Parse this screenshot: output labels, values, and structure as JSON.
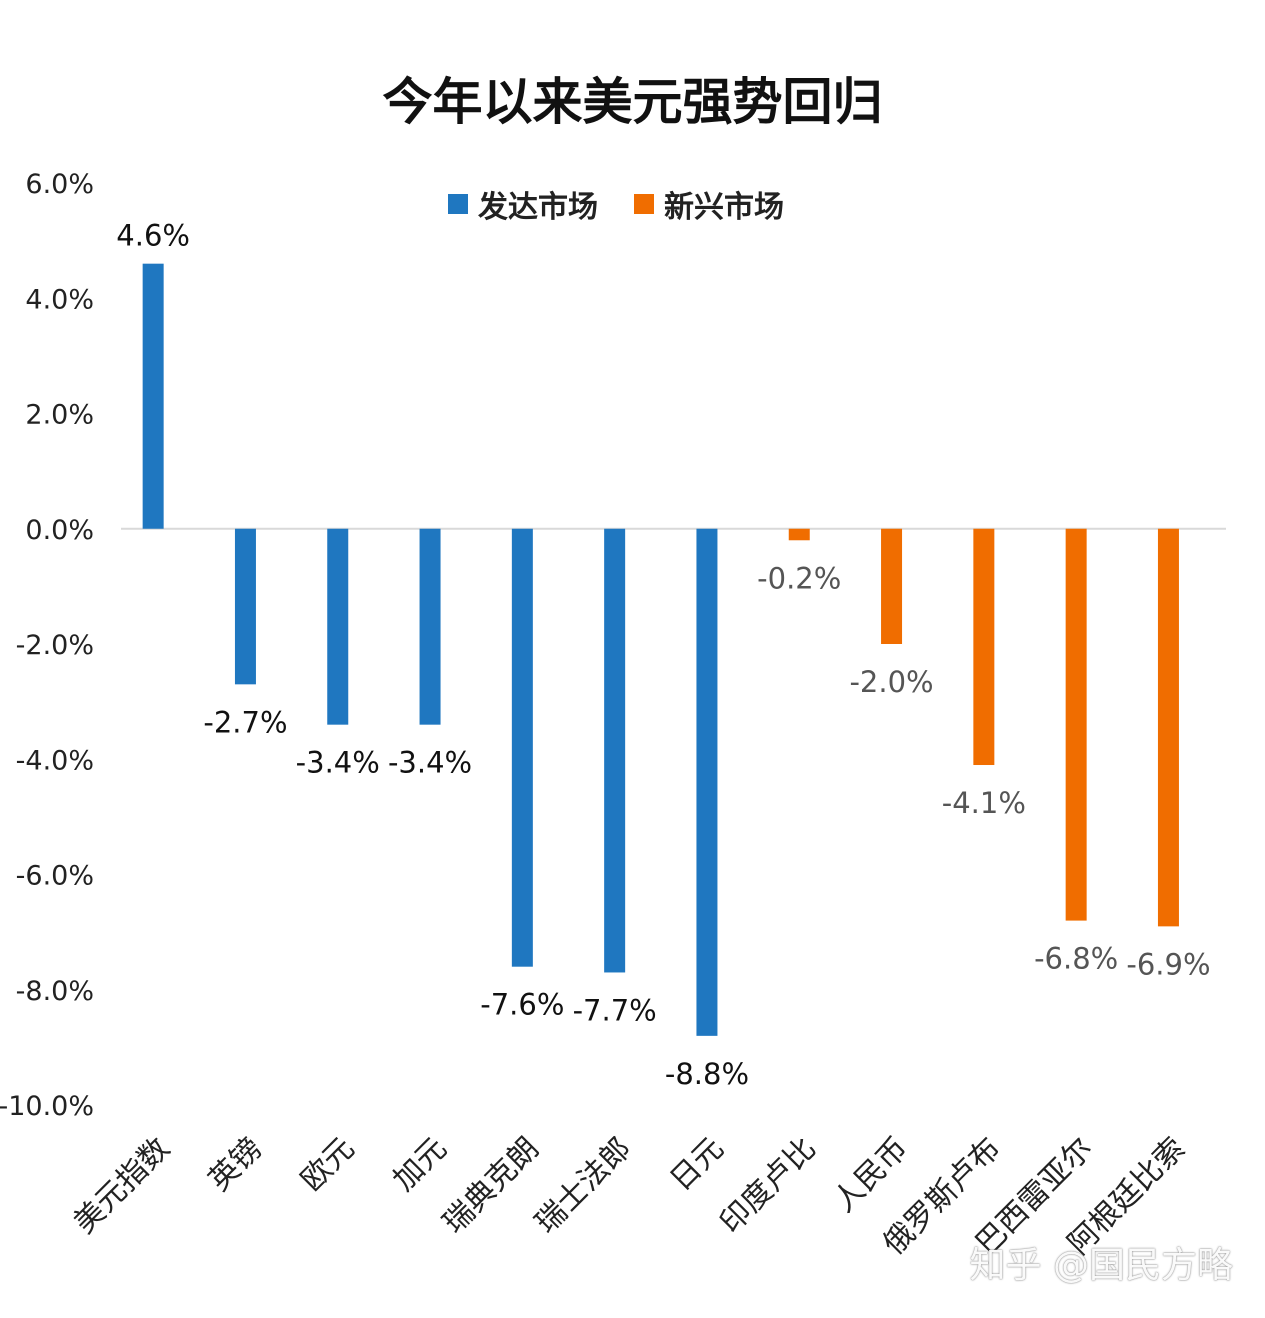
{
  "chart_data": {
    "type": "bar",
    "title": "今年以来美元强势回归",
    "categories": [
      "美元指数",
      "英镑",
      "欧元",
      "加元",
      "瑞典克朗",
      "瑞士法郎",
      "日元",
      "印度卢比",
      "人民币",
      "俄罗斯卢布",
      "巴西雷亚尔",
      "阿根廷比索"
    ],
    "values": [
      4.6,
      -2.7,
      -3.4,
      -3.4,
      -7.6,
      -7.7,
      -8.8,
      -0.2,
      -2.0,
      -4.1,
      -6.8,
      -6.9
    ],
    "value_labels": [
      "4.6%",
      "-2.7%",
      "-3.4%",
      "-3.4%",
      "-7.6%",
      "-7.7%",
      "-8.8%",
      "-0.2%",
      "-2.0%",
      "-4.1%",
      "-6.8%",
      "-6.9%"
    ],
    "groups": [
      "发达市场",
      "发达市场",
      "发达市场",
      "发达市场",
      "发达市场",
      "发达市场",
      "发达市场",
      "新兴市场",
      "新兴市场",
      "新兴市场",
      "新兴市场",
      "新兴市场"
    ],
    "legend": [
      {
        "name": "发达市场",
        "color": "#1f77c0"
      },
      {
        "name": "新兴市场",
        "color": "#f06d00"
      }
    ],
    "legend_position": "top",
    "ylim": [
      -10,
      6
    ],
    "yticks": [
      6,
      4,
      2,
      0,
      -2,
      -4,
      -6,
      -8,
      -10
    ],
    "ytick_labels": [
      "6.0%",
      "4.0%",
      "2.0%",
      "0.0%",
      "-2.0%",
      "-4.0%",
      "-6.0%",
      "-8.0%",
      "-10.0%"
    ],
    "grid": false
  },
  "watermark": "知乎 @国民方略"
}
